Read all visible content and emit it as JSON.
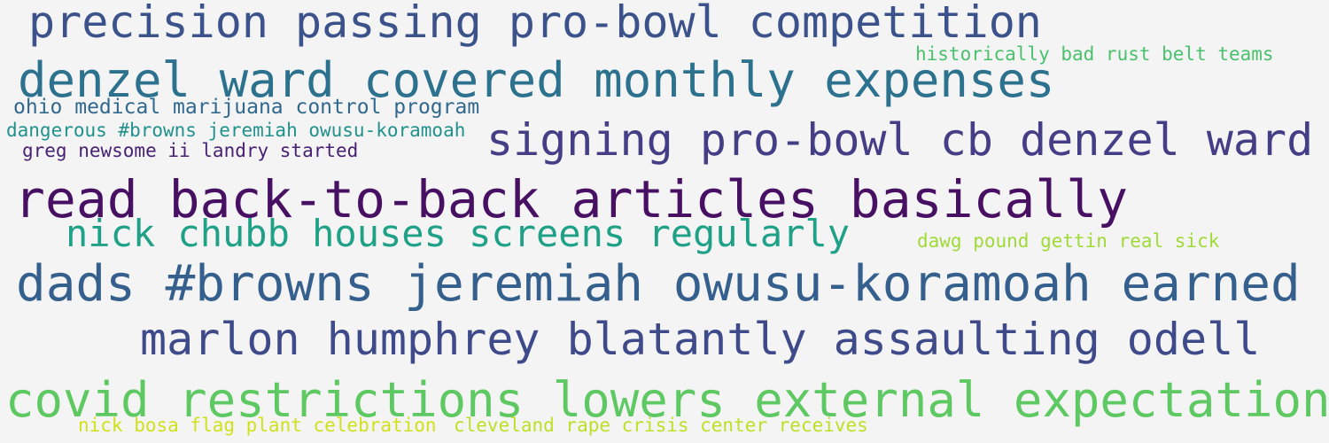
{
  "phrases": [
    {
      "text": "precision passing pro-bowl competition",
      "color": "#3b528b"
    },
    {
      "text": "historically bad rust belt teams",
      "color": "#4ac16d"
    },
    {
      "text": "denzel ward covered monthly expenses",
      "color": "#2c728e"
    },
    {
      "text": "ohio medical marijuana control program",
      "color": "#31688e"
    },
    {
      "text": "dangerous #browns jeremiah owusu-koramoah",
      "color": "#21918c"
    },
    {
      "text": "signing pro-bowl cb denzel ward",
      "color": "#433e85"
    },
    {
      "text": "greg newsome ii landry started",
      "color": "#482173"
    },
    {
      "text": "read back-to-back articles basically",
      "color": "#471063"
    },
    {
      "text": "nick chubb houses screens regularly",
      "color": "#1fa187"
    },
    {
      "text": "dawg pound gettin real sick",
      "color": "#a0da39"
    },
    {
      "text": "dads #browns jeremiah owusu-koramoah earned",
      "color": "#35608d"
    },
    {
      "text": "marlon humphrey blatantly assaulting odell",
      "color": "#3e4a89"
    },
    {
      "text": "covid restrictions lowers external expectations",
      "color": "#5ec962"
    },
    {
      "text": "nick bosa flag plant celebration",
      "color": "#d0e11c"
    },
    {
      "text": "cleveland rape crisis center receives",
      "color": "#bddf26"
    }
  ]
}
